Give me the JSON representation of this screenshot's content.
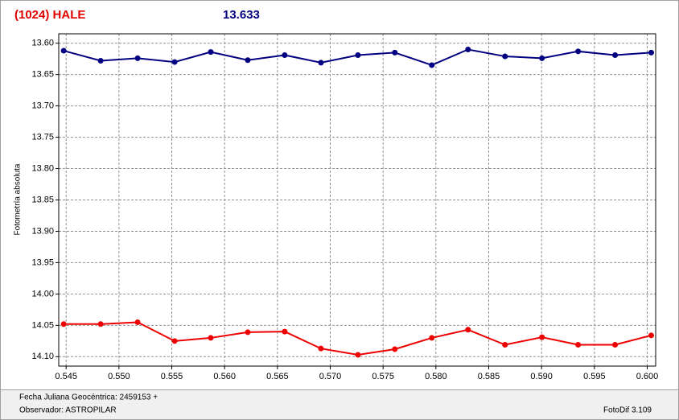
{
  "chart_data": {
    "type": "line",
    "title": "(1024) HALE",
    "subtitle": "13.633",
    "y_label": "Fotometría absoluta",
    "x": [
      0.54477,
      0.54827,
      0.55177,
      0.55527,
      0.55869,
      0.56219,
      0.56569,
      0.56912,
      0.57262,
      0.57611,
      0.57961,
      0.58304,
      0.58654,
      0.59004,
      0.59346,
      0.59696,
      0.60038
    ],
    "series": [
      {
        "color": "#000080",
        "values": [
          13.612,
          13.628,
          13.624,
          13.63,
          13.614,
          13.627,
          13.619,
          13.631,
          13.619,
          13.615,
          13.635,
          13.61,
          13.621,
          13.624,
          13.613,
          13.619,
          13.615
        ]
      },
      {
        "color": "#ee0000",
        "values": [
          14.048,
          14.048,
          14.045,
          14.075,
          14.07,
          14.061,
          14.06,
          14.087,
          14.097,
          14.088,
          14.07,
          14.057,
          14.081,
          14.069,
          14.081,
          14.081,
          14.066
        ]
      }
    ],
    "xlim": [
      0.5443,
      0.6008
    ],
    "ylim": [
      14.115,
      13.585
    ],
    "xticks": [
      0.545,
      {
        "value": 0.55,
        "label": "0.550"
      },
      0.555,
      {
        "value": 0.56,
        "label": "0.560"
      },
      0.565,
      {
        "value": 0.57,
        "label": "0.570"
      },
      0.575,
      {
        "value": 0.58,
        "label": "0.580"
      },
      0.585,
      {
        "value": 0.59,
        "label": "0.590"
      },
      0.595,
      {
        "value": 0.6,
        "label": "0.600"
      }
    ],
    "yticks": [
      {
        "value": 13.6,
        "label": "13.60"
      },
      13.65,
      {
        "value": 13.7,
        "label": "13.70"
      },
      13.75,
      {
        "value": 13.8,
        "label": "13.80"
      },
      13.85,
      {
        "value": 13.9,
        "label": "13.90"
      },
      13.95,
      {
        "value": 14,
        "label": "14.00"
      },
      14.05,
      {
        "value": 14.1,
        "label": "14.10"
      }
    ],
    "grid": true
  },
  "footer": {
    "date": "Fecha Juliana Geocéntrica: 2459153 +",
    "observer": "Observador: ASTROPILAR",
    "software": "FotoDif 3.109"
  }
}
